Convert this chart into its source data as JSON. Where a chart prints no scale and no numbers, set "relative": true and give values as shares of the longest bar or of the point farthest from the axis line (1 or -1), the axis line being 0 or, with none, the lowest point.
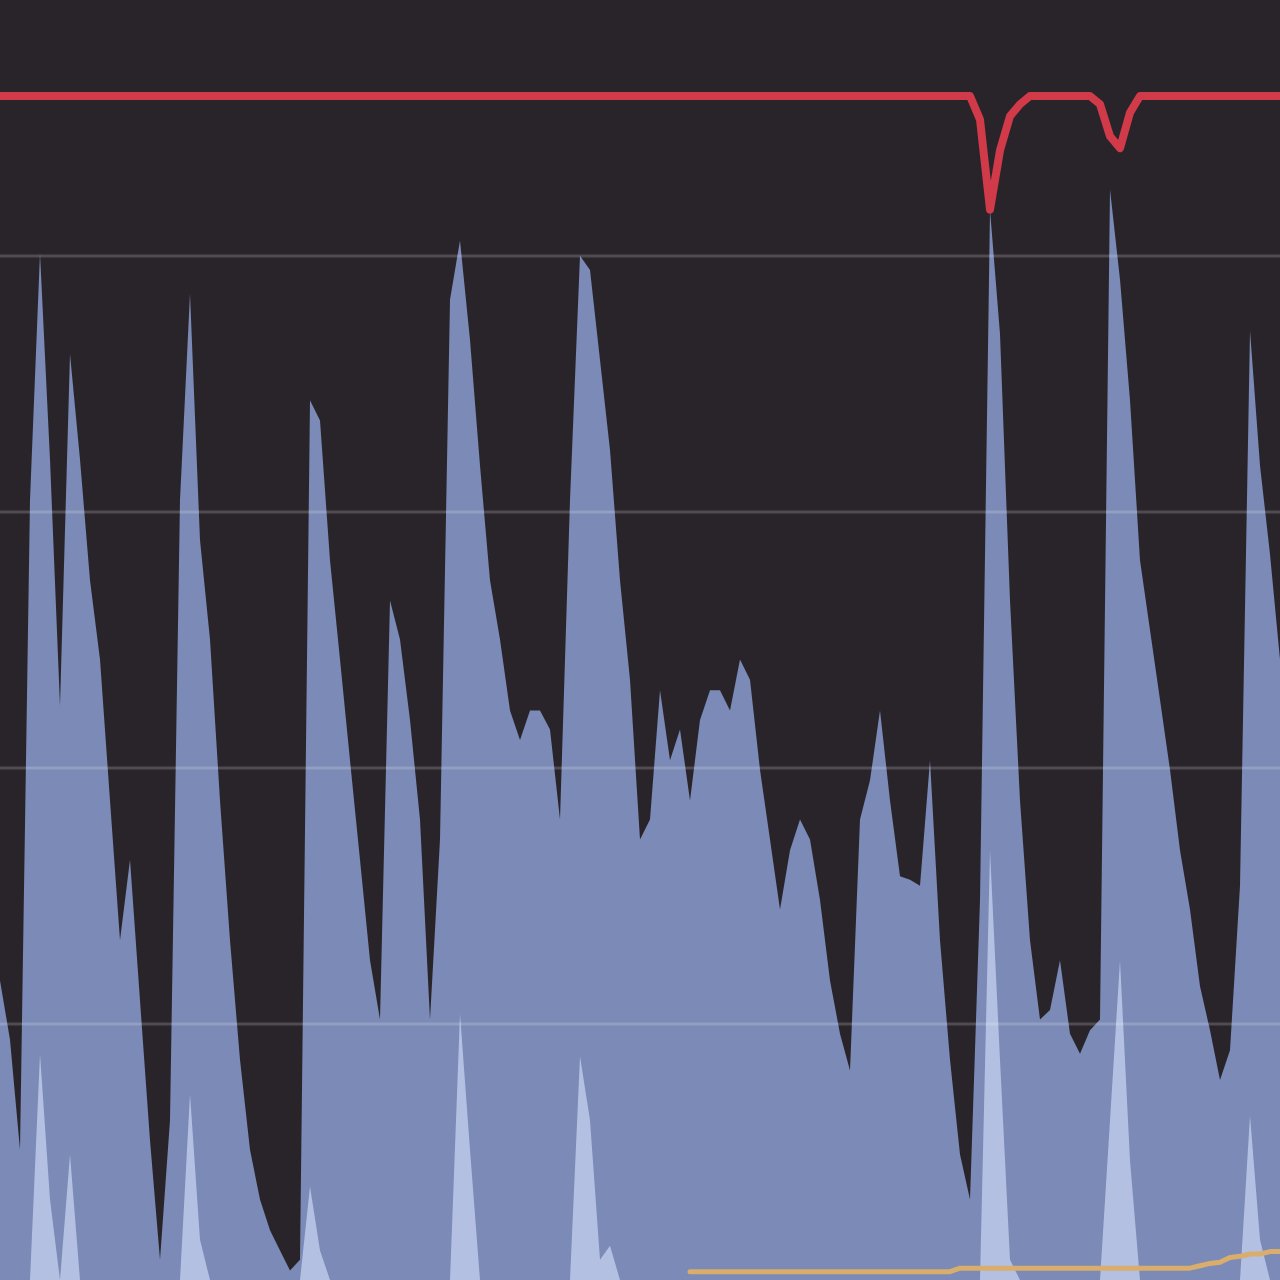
{
  "chart_data": {
    "type": "area",
    "relative": true,
    "grid": true,
    "categories": [
      null,
      null,
      null,
      null,
      null,
      null,
      null,
      null,
      null,
      null,
      null,
      null,
      null,
      null,
      null,
      null,
      null,
      null,
      null,
      null,
      null,
      null,
      null,
      null,
      null,
      null,
      null,
      null,
      null,
      null,
      null,
      null,
      null,
      null,
      null,
      null,
      null,
      null,
      null,
      null,
      null,
      null,
      null,
      null,
      null,
      null,
      null,
      null,
      null,
      null,
      null,
      null,
      null,
      null,
      null,
      null,
      null,
      null,
      null,
      null,
      null,
      null,
      null,
      null,
      null,
      null,
      null,
      null,
      null,
      null,
      null,
      null,
      null,
      null,
      null,
      null,
      null,
      null,
      null,
      null,
      null,
      null,
      null,
      null,
      null,
      null,
      null,
      null,
      null,
      null,
      null,
      null,
      null,
      null,
      null,
      null,
      null,
      null,
      null,
      null,
      null,
      null,
      null,
      null,
      null,
      null,
      null,
      null,
      null,
      null,
      null,
      null,
      null,
      null,
      null,
      null,
      null,
      null,
      null,
      null,
      null,
      null,
      null,
      null,
      null,
      null,
      null,
      null,
      null
    ],
    "series": [
      {
        "color": "#7b8ab6",
        "values": [
          0.253,
          0.203,
          0.11,
          0.659,
          0.867,
          0.693,
          0.485,
          0.782,
          0.693,
          0.591,
          0.524,
          0.405,
          0.287,
          0.355,
          0.236,
          0.118,
          0.017,
          0.135,
          0.659,
          0.833,
          0.625,
          0.541,
          0.405,
          0.287,
          0.186,
          0.11,
          0.068,
          0.042,
          0.025,
          0.008,
          0.017,
          0.743,
          0.726,
          0.608,
          0.524,
          0.439,
          0.355,
          0.27,
          0.22,
          0.574,
          0.541,
          0.473,
          0.389,
          0.22,
          0.372,
          0.828,
          0.878,
          0.794,
          0.688,
          0.591,
          0.541,
          0.481,
          0.456,
          0.481,
          0.481,
          0.465,
          0.389,
          0.659,
          0.865,
          0.853,
          0.777,
          0.701,
          0.591,
          0.507,
          0.372,
          0.389,
          0.498,
          0.439,
          0.465,
          0.405,
          0.473,
          0.498,
          0.498,
          0.481,
          0.524,
          0.507,
          0.431,
          0.372,
          0.313,
          0.363,
          0.389,
          0.372,
          0.321,
          0.253,
          0.208,
          0.177,
          0.389,
          0.422,
          0.481,
          0.405,
          0.341,
          0.338,
          0.333,
          0.439,
          0.287,
          0.186,
          0.106,
          0.068,
          0.321,
          0.904,
          0.799,
          0.574,
          0.405,
          0.287,
          0.22,
          0.228,
          0.27,
          0.208,
          0.191,
          0.211,
          0.22,
          0.921,
          0.845,
          0.743,
          0.608,
          0.549,
          0.49,
          0.431,
          0.363,
          0.313,
          0.248,
          0.211,
          0.169,
          0.194,
          0.333,
          0.802,
          0.688,
          0.613,
          0.524
        ]
      },
      {
        "color": "#b3c0e2",
        "values": [
          0,
          0,
          0,
          0,
          0.191,
          0.068,
          0,
          0.106,
          0,
          0,
          0,
          0,
          0,
          0,
          0,
          0,
          0,
          0,
          0,
          0.157,
          0.034,
          0,
          0,
          0,
          0,
          0,
          0,
          0,
          0,
          0,
          0,
          0.079,
          0.025,
          0,
          0,
          0,
          0,
          0,
          0,
          0,
          0,
          0,
          0,
          0,
          0,
          0,
          0.225,
          0.11,
          0,
          0,
          0,
          0,
          0,
          0,
          0,
          0,
          0,
          0,
          0.189,
          0.135,
          0.017,
          0.029,
          0,
          0,
          0,
          0,
          0,
          0,
          0,
          0,
          0,
          0,
          0,
          0,
          0,
          0,
          0,
          0,
          0,
          0,
          0,
          0,
          0,
          0,
          0,
          0,
          0,
          0,
          0,
          0,
          0,
          0,
          0,
          0,
          0,
          0,
          0,
          0,
          0,
          0.363,
          0.186,
          0.017,
          0,
          0,
          0,
          0,
          0,
          0,
          0,
          0,
          0,
          0.135,
          0.27,
          0.101,
          0,
          0,
          0,
          0,
          0,
          0,
          0,
          0,
          0,
          0,
          0,
          0.139,
          0.034,
          0,
          0
        ]
      },
      {
        "type": "line",
        "color": "#d13a49",
        "values": [
          1,
          1,
          1,
          1,
          1,
          1,
          1,
          1,
          1,
          1,
          1,
          1,
          1,
          1,
          1,
          1,
          1,
          1,
          1,
          1,
          1,
          1,
          1,
          1,
          1,
          1,
          1,
          1,
          1,
          1,
          1,
          1,
          1,
          1,
          1,
          1,
          1,
          1,
          1,
          1,
          1,
          1,
          1,
          1,
          1,
          1,
          1,
          1,
          1,
          1,
          1,
          1,
          1,
          1,
          1,
          1,
          1,
          1,
          1,
          1,
          1,
          1,
          1,
          1,
          1,
          1,
          1,
          1,
          1,
          1,
          1,
          1,
          1,
          1,
          1,
          1,
          1,
          1,
          1,
          1,
          1,
          1,
          1,
          1,
          1,
          1,
          1,
          1,
          1,
          1,
          1,
          1,
          1,
          1,
          1,
          1,
          1,
          1,
          0.98,
          0.904,
          0.954,
          0.983,
          0.993,
          1,
          1,
          1,
          1,
          1,
          1,
          1,
          0.993,
          0.966,
          0.956,
          0.986,
          1,
          1,
          1,
          1,
          1,
          1,
          1,
          1,
          1,
          1,
          1,
          1,
          1,
          1,
          1
        ]
      },
      {
        "type": "line",
        "color": "#d9ad6c",
        "values": [
          null,
          null,
          null,
          null,
          null,
          null,
          null,
          null,
          null,
          null,
          null,
          null,
          null,
          null,
          null,
          null,
          null,
          null,
          null,
          null,
          null,
          null,
          null,
          null,
          null,
          null,
          null,
          null,
          null,
          null,
          null,
          null,
          null,
          null,
          null,
          null,
          null,
          null,
          null,
          null,
          null,
          null,
          null,
          null,
          null,
          null,
          null,
          null,
          null,
          null,
          null,
          null,
          null,
          null,
          null,
          null,
          null,
          null,
          null,
          null,
          null,
          null,
          null,
          null,
          null,
          null,
          null,
          null,
          null,
          0.007,
          0.007,
          0.007,
          0.007,
          0.007,
          0.007,
          0.007,
          0.007,
          0.007,
          0.007,
          0.007,
          0.007,
          0.007,
          0.007,
          0.007,
          0.007,
          0.007,
          0.007,
          0.007,
          0.007,
          0.007,
          0.007,
          0.007,
          0.007,
          0.007,
          0.007,
          0.007,
          0.01,
          0.01,
          0.01,
          0.01,
          0.01,
          0.01,
          0.01,
          0.01,
          0.01,
          0.01,
          0.01,
          0.01,
          0.01,
          0.01,
          0.01,
          0.01,
          0.01,
          0.01,
          0.01,
          0.01,
          0.01,
          0.01,
          0.01,
          0.01,
          0.012,
          0.014,
          0.015,
          0.019,
          0.02,
          0.022,
          0.022,
          0.024,
          0.024
        ]
      }
    ]
  }
}
